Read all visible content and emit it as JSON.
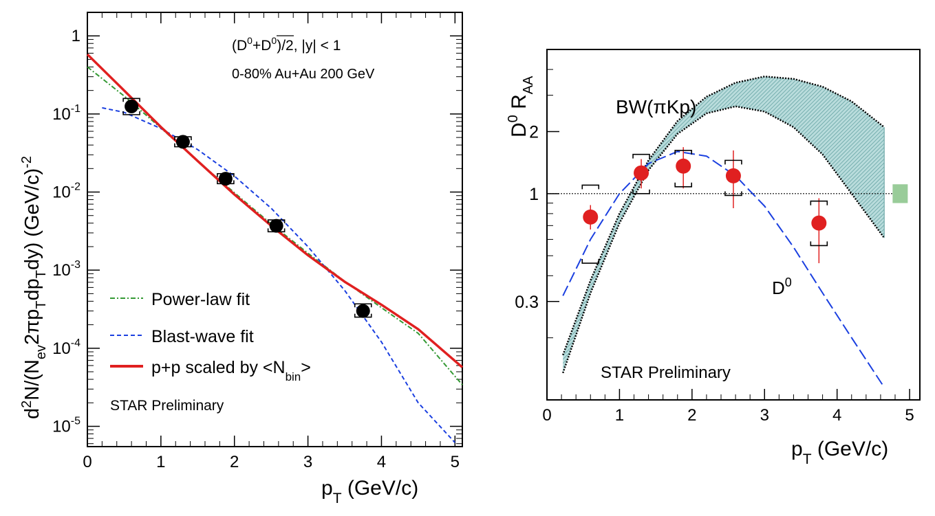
{
  "chart_data": [
    {
      "type": "scatter",
      "panel": "left",
      "xlabel_base": "p",
      "xlabel_sub": "T",
      "xlabel_rest": " (GeV/c)",
      "ylabel": "d2N/(Nev 2πpT dpT dy) (GeV/c)-2",
      "ylabel_parts": {
        "d": "d",
        "sup2": "2",
        "n": "N/(N",
        "ev": "ev",
        "twopi": "2πp",
        "t1": "T",
        "dp": "dp",
        "t2": "T",
        "dy": "dy) (GeV/c)",
        "exp": "-2"
      },
      "xlim": [
        0,
        5.1
      ],
      "ylim": [
        5.5e-06,
        2.0
      ],
      "yscale": "log",
      "xticks": [
        "0",
        "1",
        "2",
        "3",
        "4",
        "5"
      ],
      "yticks": [
        {
          "mantissa": "1",
          "exp": "",
          "value": 1
        },
        {
          "mantissa": "10",
          "exp": "-1",
          "value": 0.1
        },
        {
          "mantissa": "10",
          "exp": "-2",
          "value": 0.01
        },
        {
          "mantissa": "10",
          "exp": "-3",
          "value": 0.001
        },
        {
          "mantissa": "10",
          "exp": "-4",
          "value": 0.0001
        },
        {
          "mantissa": "10",
          "exp": "-5",
          "value": 1e-05
        }
      ],
      "annotation_line1": "(D0+D0)/2, |y| < 1",
      "annotation_parts": {
        "open": "(D",
        "sup0a": "0",
        "plus": "+",
        "dbar": "D",
        "sup0b": "0",
        "close": ")/2, |y| < 1"
      },
      "annotation_line2": "0-80% Au+Au 200 GeV",
      "watermark": "STAR Preliminary",
      "data_points": {
        "x": [
          0.6,
          1.3,
          1.88,
          2.57,
          3.75
        ],
        "y": [
          0.125,
          0.044,
          0.0148,
          0.0037,
          0.0003
        ],
        "sys_low": [
          0.098,
          0.038,
          0.0128,
          0.0031,
          0.00025
        ],
        "sys_high": [
          0.158,
          0.051,
          0.0172,
          0.0044,
          0.00037
        ],
        "color": "#000000"
      },
      "series": [
        {
          "name": "Power-law fit",
          "label": "Power-law fit",
          "style": "dash-dot",
          "color": "#339933",
          "x": [
            0.0,
            0.5,
            1.0,
            1.5,
            2.0,
            2.5,
            3.0,
            3.5,
            4.0,
            4.5,
            5.1
          ],
          "y": [
            0.4,
            0.17,
            0.066,
            0.025,
            0.0098,
            0.0039,
            0.00165,
            0.00072,
            0.00033,
            0.000155,
            3.4e-05
          ]
        },
        {
          "name": "Blast-wave fit",
          "label": "Blast-wave fit",
          "style": "dashed",
          "color": "#1a3fe0",
          "x": [
            0.2,
            0.5,
            1.0,
            1.5,
            2.0,
            2.5,
            3.0,
            3.5,
            4.0,
            4.5,
            5.0
          ],
          "y": [
            0.12,
            0.105,
            0.065,
            0.035,
            0.016,
            0.0062,
            0.002,
            0.00055,
            0.00012,
            2e-05,
            6.2e-06
          ]
        },
        {
          "name": "p+p scaled by <Nbin>",
          "label_main": "p+p scaled by <N",
          "label_sub": "bin",
          "label_end": ">",
          "style": "solid",
          "color": "#e02020",
          "x": [
            0.0,
            0.5,
            1.0,
            1.5,
            2.0,
            2.5,
            3.0,
            3.5,
            4.0,
            4.5,
            5.1
          ],
          "y": [
            0.58,
            0.2,
            0.068,
            0.025,
            0.0093,
            0.0037,
            0.00155,
            0.00071,
            0.00036,
            0.000175,
            5.7e-05
          ]
        }
      ]
    },
    {
      "type": "scatter",
      "panel": "right",
      "xlabel_base": "p",
      "xlabel_sub": "T",
      "xlabel_rest": " (GeV/c)",
      "ylabel": "D0 RAA",
      "ylabel_parts": {
        "d": "D",
        "sup": "0",
        "r": " R",
        "sub": "AA"
      },
      "xlim": [
        0,
        5.0
      ],
      "ylim": [
        0.1,
        5.0
      ],
      "yscale": "log",
      "xticks": [
        "0",
        "1",
        "2",
        "3",
        "4",
        "5"
      ],
      "yticks": [
        {
          "label": "0.3",
          "value": 0.3
        },
        {
          "label": "1",
          "value": 1
        },
        {
          "label": "2",
          "value": 2
        }
      ],
      "reference_line": 1,
      "band_label": "BW(πKp)",
      "curve_label": "D",
      "curve_label_sup": "0",
      "watermark": "STAR Preliminary",
      "norm_uncertainty_box": {
        "x": 4.87,
        "y_low": 0.9,
        "y_high": 1.11,
        "color": "#99cc99"
      },
      "data_points": {
        "x": [
          0.6,
          1.3,
          1.88,
          2.57,
          3.75
        ],
        "y": [
          0.77,
          1.26,
          1.36,
          1.22,
          0.72
        ],
        "err_low": [
          0.67,
          1.06,
          1.06,
          0.85,
          0.46
        ],
        "err_high": [
          0.88,
          1.47,
          1.68,
          1.62,
          0.95
        ],
        "sys_low": [
          0.46,
          1.0,
          1.08,
          0.98,
          0.56
        ],
        "sys_high": [
          1.1,
          1.55,
          1.62,
          1.45,
          0.92
        ],
        "color": "#e02020"
      },
      "series": [
        {
          "name": "BW(πKp) upper",
          "style": "dotted",
          "color": "#000000",
          "x": [
            0.22,
            0.6,
            1.0,
            1.4,
            1.8,
            2.2,
            2.6,
            3.0,
            3.4,
            3.8,
            4.2,
            4.65
          ],
          "y": [
            0.165,
            0.38,
            0.8,
            1.45,
            2.25,
            2.95,
            3.45,
            3.7,
            3.6,
            3.3,
            2.8,
            2.1
          ]
        },
        {
          "name": "BW(πKp) lower",
          "style": "dotted",
          "color": "#000000",
          "x": [
            0.22,
            0.6,
            1.0,
            1.4,
            1.8,
            2.2,
            2.6,
            3.0,
            3.4,
            3.8,
            4.2,
            4.65
          ],
          "y": [
            0.135,
            0.33,
            0.72,
            1.3,
            1.95,
            2.45,
            2.65,
            2.5,
            2.1,
            1.55,
            1.0,
            0.61
          ]
        },
        {
          "name": "D0 blast-wave curve",
          "style": "long-dash",
          "color": "#1a3fe0",
          "x": [
            0.22,
            0.6,
            1.0,
            1.4,
            1.8,
            2.2,
            2.6,
            3.0,
            3.4,
            3.8,
            4.2,
            4.65
          ],
          "y": [
            0.32,
            0.6,
            1.0,
            1.4,
            1.6,
            1.52,
            1.22,
            0.87,
            0.55,
            0.33,
            0.2,
            0.115
          ]
        }
      ]
    }
  ]
}
